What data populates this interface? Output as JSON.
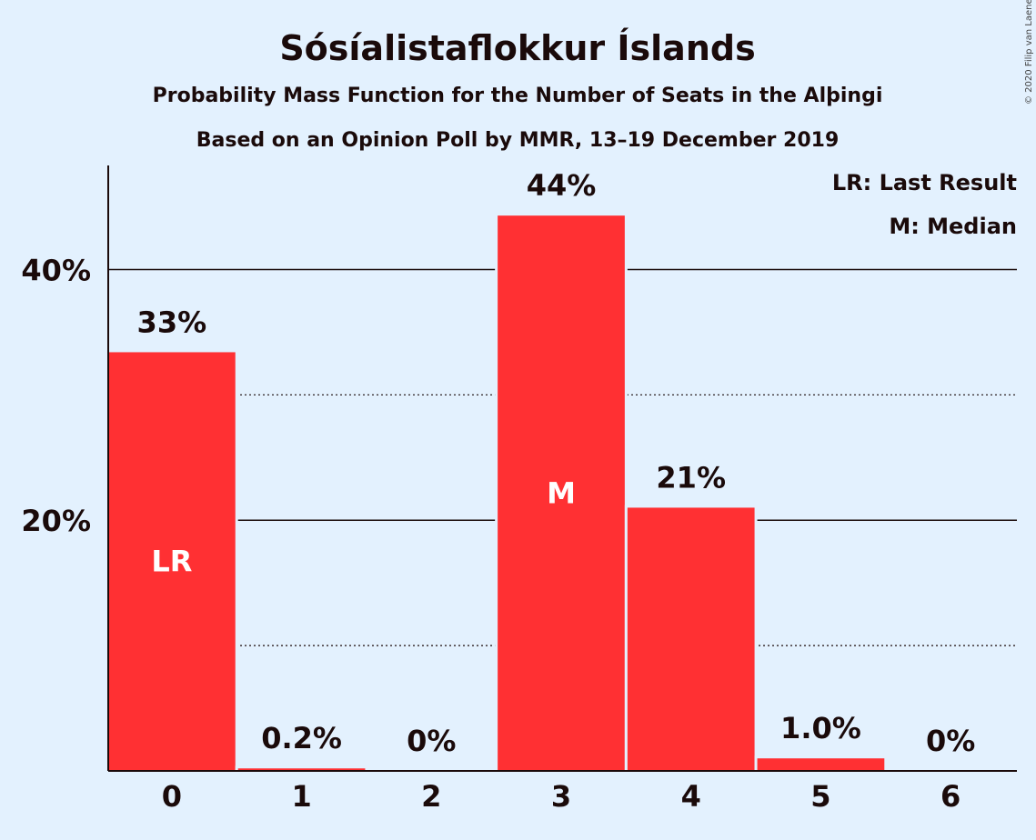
{
  "chart_data": {
    "type": "bar",
    "title": "Sósíalistaflokkur Íslands",
    "subtitle_1": "Probability Mass Function for the Number of Seats in the Alþingi",
    "subtitle_2": "Based on an Opinion Poll by MMR, 13–19 December 2019",
    "credit": "© 2020 Filip van Laenen",
    "categories": [
      "0",
      "1",
      "2",
      "3",
      "4",
      "5",
      "6"
    ],
    "values": [
      33.4,
      0.2,
      0,
      44.3,
      21.0,
      1.0,
      0
    ],
    "value_labels": [
      "33%",
      "0.2%",
      "0%",
      "44%",
      "21%",
      "1.0%",
      "0%"
    ],
    "inner_labels": [
      "LR",
      "",
      "",
      "M",
      "",
      "",
      ""
    ],
    "yticks": [
      {
        "value": 20,
        "label": "20%"
      },
      {
        "value": 40,
        "label": "40%"
      }
    ],
    "minor_gridlines": [
      10,
      30
    ],
    "ylim": [
      0,
      48.3
    ],
    "legend": [
      "LR: Last Result",
      "M: Median"
    ],
    "legend_position": "top-right",
    "colors": {
      "bar": "#ff3033",
      "background": "#e3f1fe",
      "text": "#1a0a0a",
      "inner_text": "#ffffff"
    }
  }
}
